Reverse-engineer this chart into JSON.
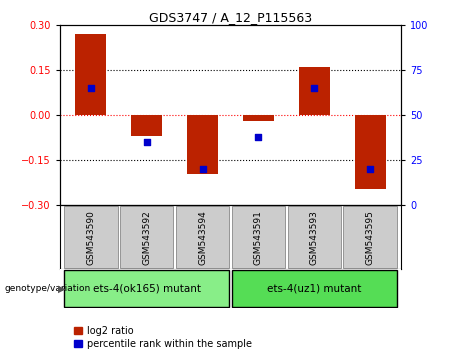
{
  "title": "GDS3747 / A_12_P115563",
  "samples": [
    "GSM543590",
    "GSM543592",
    "GSM543594",
    "GSM543591",
    "GSM543593",
    "GSM543595"
  ],
  "log2_ratio": [
    0.27,
    -0.07,
    -0.195,
    -0.02,
    0.16,
    -0.245
  ],
  "percentile_rank": [
    65,
    35,
    20,
    38,
    65,
    20
  ],
  "ylim_left": [
    -0.3,
    0.3
  ],
  "ylim_right": [
    0,
    100
  ],
  "yticks_left": [
    -0.3,
    -0.15,
    0,
    0.15,
    0.3
  ],
  "yticks_right": [
    0,
    25,
    50,
    75,
    100
  ],
  "hlines_black": [
    0.15,
    -0.15
  ],
  "hline_red": 0,
  "bar_color": "#bb2200",
  "dot_color": "#0000cc",
  "bar_width": 0.55,
  "group1_label": "ets-4(ok165) mutant",
  "group2_label": "ets-4(uz1) mutant",
  "group1_indices": [
    0,
    1,
    2
  ],
  "group2_indices": [
    3,
    4,
    5
  ],
  "group1_color": "#88ee88",
  "group2_color": "#55dd55",
  "sample_box_color": "#cccccc",
  "legend_log2": "log2 ratio",
  "legend_pct": "percentile rank within the sample",
  "genotype_label": "genotype/variation"
}
